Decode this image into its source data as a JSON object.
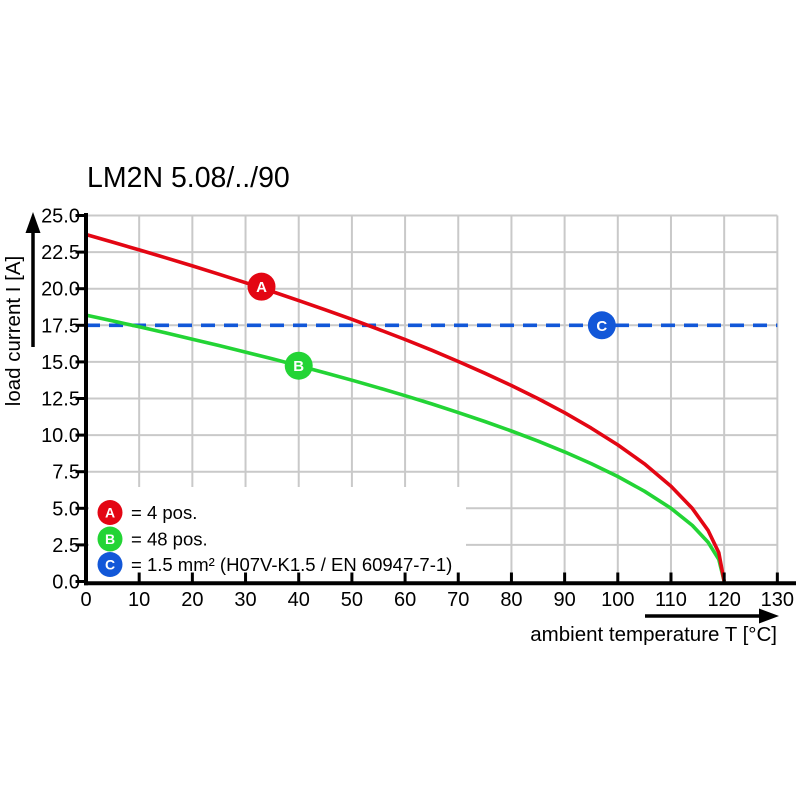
{
  "colors": {
    "red": "#e30613",
    "green": "#23d435",
    "blue": "#1257d8",
    "grid": "#c9c9c9",
    "axis": "#000000"
  },
  "chart_data": {
    "type": "line",
    "title": "LM2N 5.08/../90",
    "xlabel": "ambient temperature T [°C]",
    "ylabel": "load current I [A]",
    "xlim": [
      0,
      130
    ],
    "ylim": [
      0,
      25
    ],
    "x_ticks": [
      0,
      10,
      20,
      30,
      40,
      50,
      60,
      70,
      80,
      90,
      100,
      110,
      120,
      130
    ],
    "y_tick_labels": [
      "0.0",
      "2.5",
      "5.0",
      "7.5",
      "10.0",
      "12.5",
      "15.0",
      "17.5",
      "20.0",
      "22.5",
      "25.0"
    ],
    "grid": true,
    "legend_position": "inside-bottom-left",
    "series": [
      {
        "name": "B",
        "color_key": "green",
        "style": "solid",
        "marker": {
          "x": 40,
          "y": 14.74,
          "letter": "B"
        },
        "points": [
          [
            0,
            18.2
          ],
          [
            5,
            17.8
          ],
          [
            10,
            17.4
          ],
          [
            15,
            16.98
          ],
          [
            20,
            16.55
          ],
          [
            25,
            16.12
          ],
          [
            30,
            15.67
          ],
          [
            35,
            15.21
          ],
          [
            40,
            14.74
          ],
          [
            45,
            14.25
          ],
          [
            50,
            13.75
          ],
          [
            55,
            13.23
          ],
          [
            60,
            12.69
          ],
          [
            65,
            12.13
          ],
          [
            70,
            11.54
          ],
          [
            75,
            10.93
          ],
          [
            80,
            10.28
          ],
          [
            85,
            9.59
          ],
          [
            90,
            8.85
          ],
          [
            95,
            8.05
          ],
          [
            100,
            7.17
          ],
          [
            105,
            6.17
          ],
          [
            110,
            5.0
          ],
          [
            114,
            3.83
          ],
          [
            117,
            2.67
          ],
          [
            119,
            1.51
          ],
          [
            120,
            0
          ]
        ]
      },
      {
        "name": "A",
        "color_key": "red",
        "style": "solid",
        "marker": {
          "x": 33,
          "y": 20.14,
          "letter": "A"
        },
        "points": [
          [
            0,
            23.7
          ],
          [
            5,
            23.18
          ],
          [
            10,
            22.65
          ],
          [
            15,
            22.11
          ],
          [
            20,
            21.56
          ],
          [
            25,
            20.99
          ],
          [
            30,
            20.41
          ],
          [
            35,
            19.81
          ],
          [
            40,
            19.19
          ],
          [
            45,
            18.56
          ],
          [
            50,
            17.91
          ],
          [
            55,
            17.23
          ],
          [
            60,
            16.53
          ],
          [
            65,
            15.8
          ],
          [
            70,
            15.03
          ],
          [
            75,
            14.23
          ],
          [
            80,
            13.39
          ],
          [
            85,
            12.49
          ],
          [
            90,
            11.53
          ],
          [
            95,
            10.48
          ],
          [
            100,
            9.33
          ],
          [
            105,
            8.04
          ],
          [
            110,
            6.51
          ],
          [
            114,
            4.99
          ],
          [
            117,
            3.48
          ],
          [
            119,
            1.97
          ],
          [
            120,
            0
          ]
        ]
      },
      {
        "name": "C",
        "color_key": "blue",
        "style": "dashed",
        "marker": {
          "x": 97,
          "y": 17.5,
          "letter": "C"
        },
        "points": [
          [
            0,
            17.5
          ],
          [
            130,
            17.5
          ]
        ]
      }
    ],
    "legend": [
      {
        "letter": "A",
        "color_key": "red",
        "text": "= 4 pos."
      },
      {
        "letter": "B",
        "color_key": "green",
        "text": "= 48 pos."
      },
      {
        "letter": "C",
        "color_key": "blue",
        "text": "= 1.5 mm² (H07V-K1.5 / EN 60947-7-1)"
      }
    ]
  }
}
